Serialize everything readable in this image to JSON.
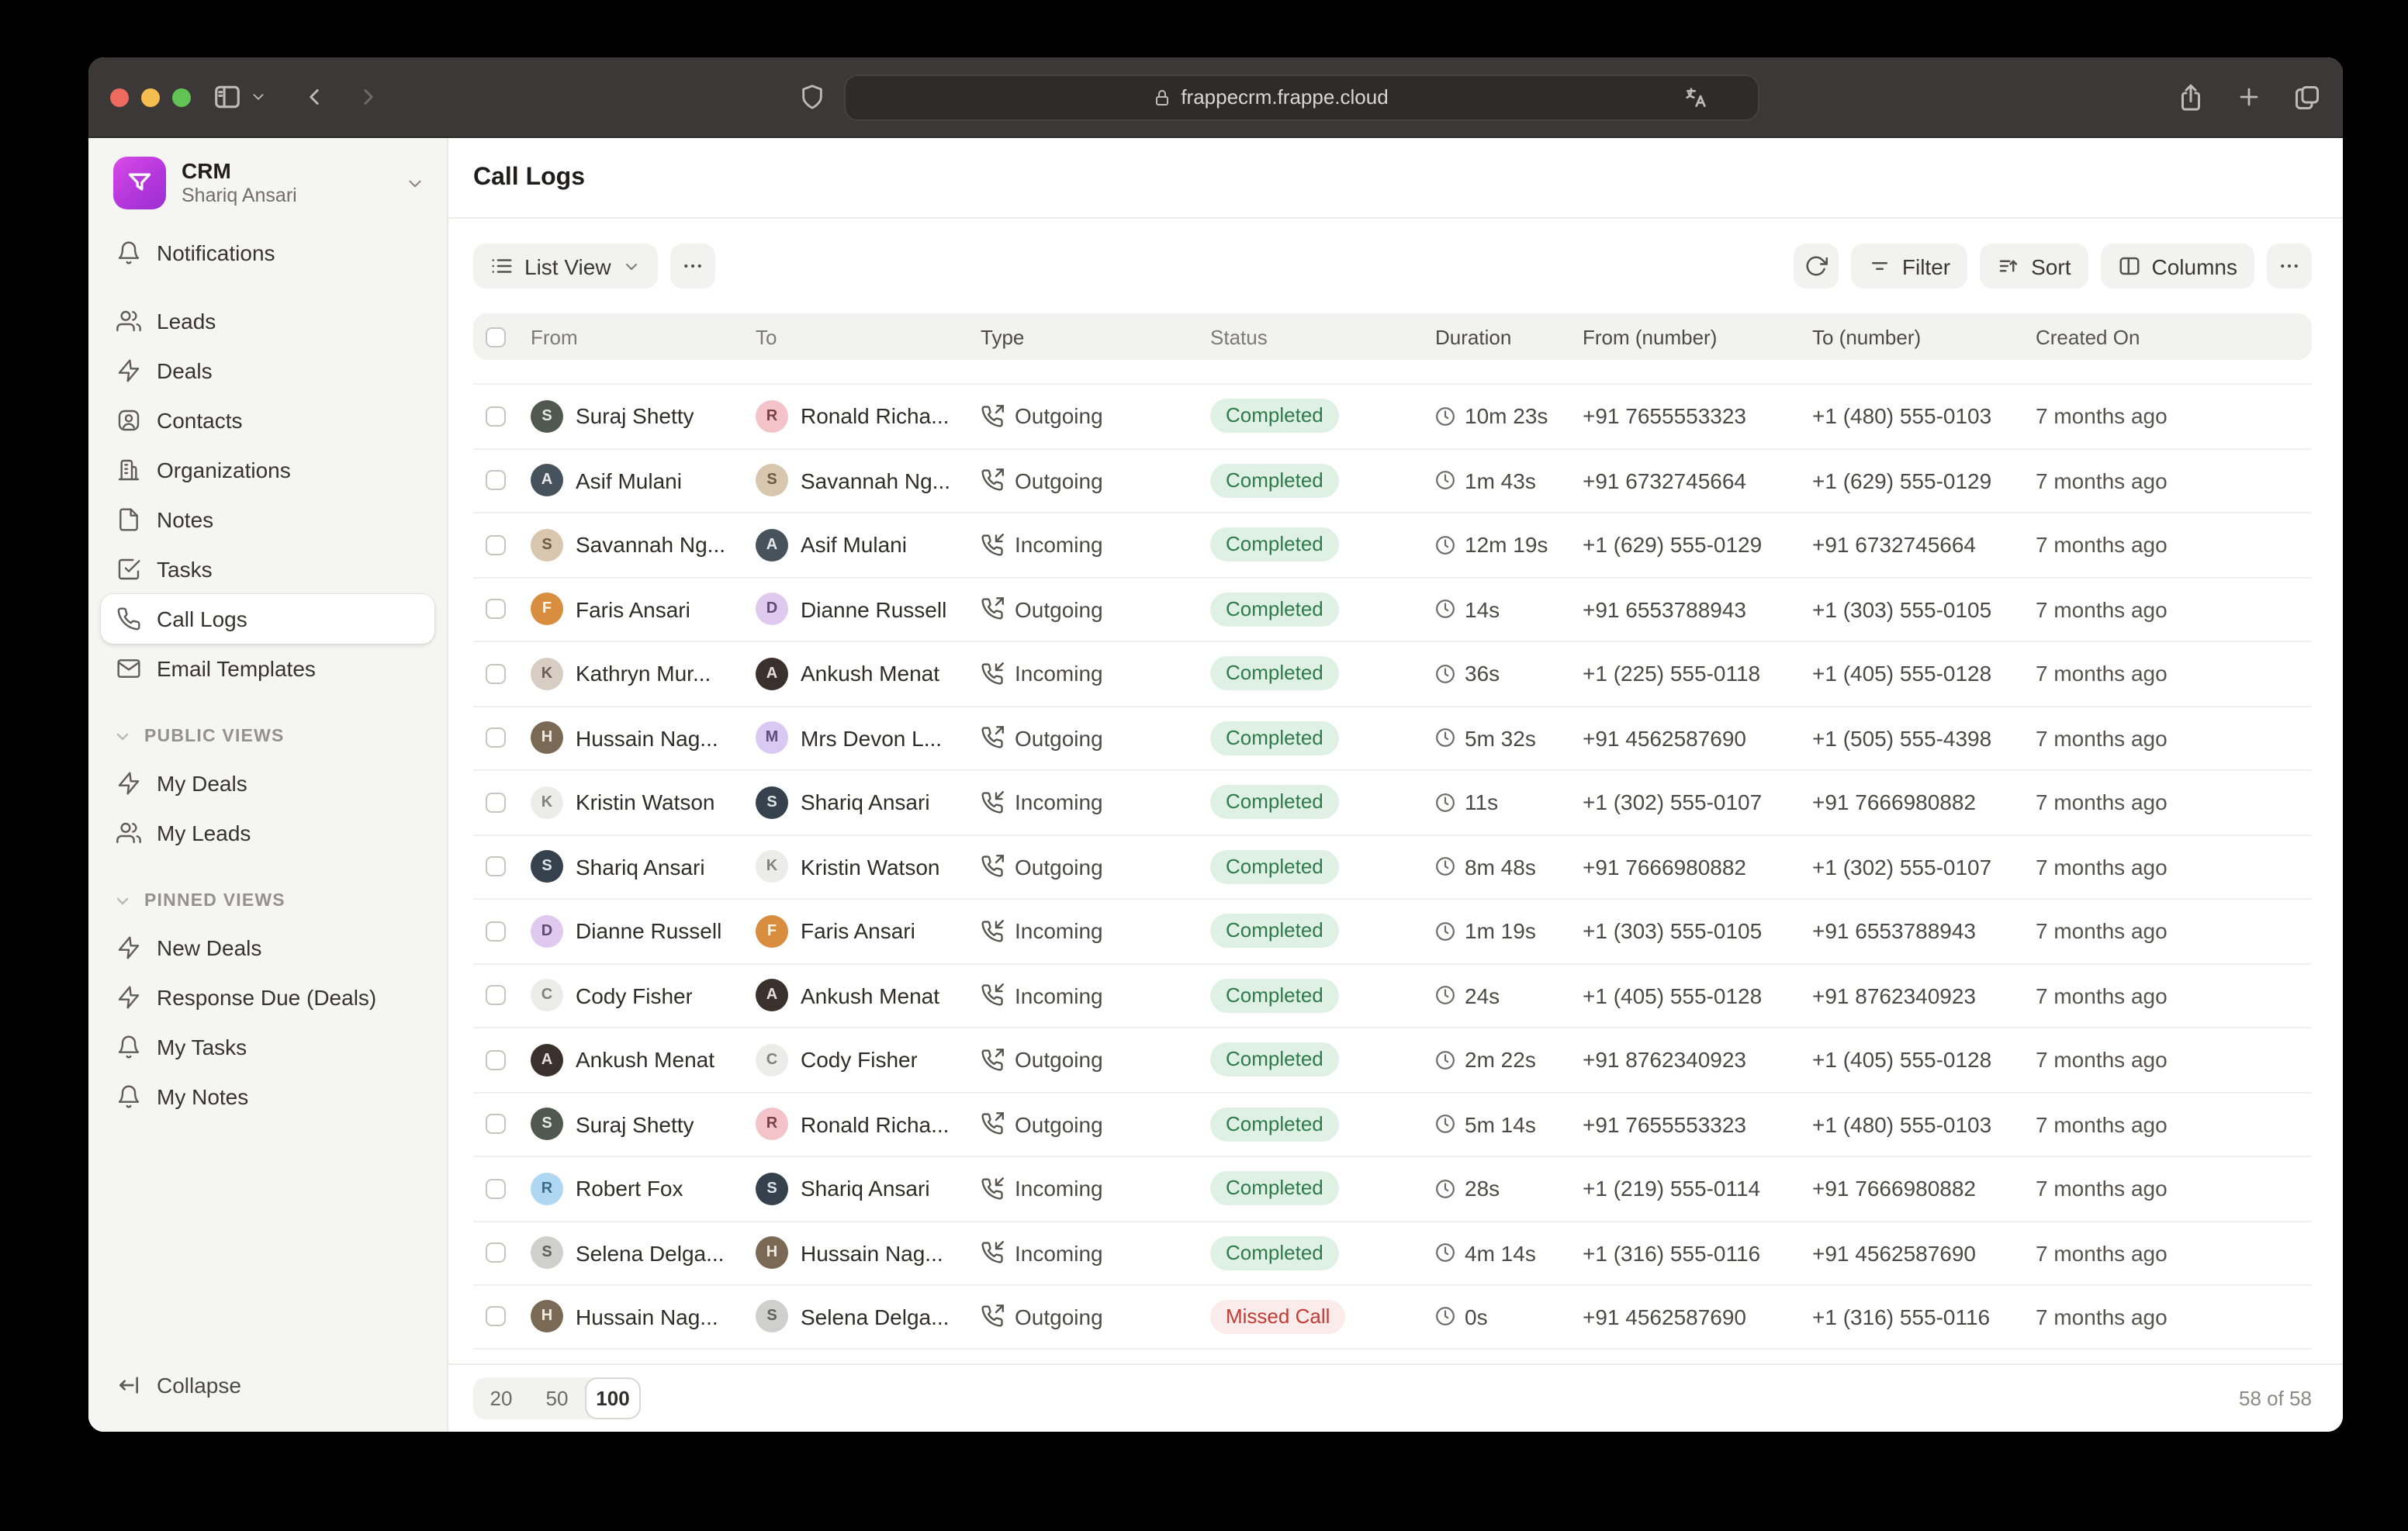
{
  "browser": {
    "url": "frappecrm.frappe.cloud",
    "traffic_lights": [
      "#EE6A5F",
      "#F5BD4F",
      "#61C454"
    ]
  },
  "sidebar": {
    "app": {
      "name": "CRM",
      "user": "Shariq Ansari"
    },
    "nav": [
      {
        "label": "Notifications",
        "icon": "bell"
      },
      {
        "label": "Leads",
        "icon": "users",
        "gap_before": true
      },
      {
        "label": "Deals",
        "icon": "zap"
      },
      {
        "label": "Contacts",
        "icon": "contact"
      },
      {
        "label": "Organizations",
        "icon": "building"
      },
      {
        "label": "Notes",
        "icon": "file"
      },
      {
        "label": "Tasks",
        "icon": "check-square"
      },
      {
        "label": "Call Logs",
        "icon": "phone",
        "active": true
      },
      {
        "label": "Email Templates",
        "icon": "mail"
      }
    ],
    "sections": [
      {
        "title": "PUBLIC VIEWS",
        "items": [
          {
            "label": "My Deals",
            "icon": "zap"
          },
          {
            "label": "My Leads",
            "icon": "users"
          }
        ]
      },
      {
        "title": "PINNED VIEWS",
        "items": [
          {
            "label": "New Deals",
            "icon": "zap"
          },
          {
            "label": "Response Due (Deals)",
            "icon": "zap"
          },
          {
            "label": "My Tasks",
            "icon": "bell"
          },
          {
            "label": "My Notes",
            "icon": "bell"
          }
        ]
      }
    ],
    "collapse_label": "Collapse"
  },
  "main": {
    "title": "Call Logs",
    "toolbar": {
      "view_label": "List View",
      "buttons": [
        {
          "label": "Filter",
          "icon": "filter"
        },
        {
          "label": "Sort",
          "icon": "sort"
        },
        {
          "label": "Columns",
          "icon": "columns"
        }
      ]
    },
    "table": {
      "columns": [
        "From",
        "To",
        "Type",
        "Status",
        "Duration",
        "From (number)",
        "To (number)",
        "Created On"
      ],
      "rows": [
        {
          "from": "Suraj Shetty",
          "to": "Ronald Richa...",
          "type": "outgoing",
          "status": "completed",
          "duration": "10m 23s",
          "from_number": "+91 7655553323",
          "to_number": "+1 (480) 555-0103",
          "created": "7 months ago"
        },
        {
          "from": "Asif Mulani",
          "to": "Savannah Ng...",
          "type": "outgoing",
          "status": "completed",
          "duration": "1m 43s",
          "from_number": "+91 6732745664",
          "to_number": "+1 (629) 555-0129",
          "created": "7 months ago"
        },
        {
          "from": "Savannah Ng...",
          "to": "Asif Mulani",
          "type": "incoming",
          "status": "completed",
          "duration": "12m 19s",
          "from_number": "+1 (629) 555-0129",
          "to_number": "+91 6732745664",
          "created": "7 months ago"
        },
        {
          "from": "Faris Ansari",
          "to": "Dianne Russell",
          "type": "outgoing",
          "status": "completed",
          "duration": "14s",
          "from_number": "+91 6553788943",
          "to_number": "+1 (303) 555-0105",
          "created": "7 months ago"
        },
        {
          "from": "Kathryn Mur...",
          "to": "Ankush Menat",
          "type": "incoming",
          "status": "completed",
          "duration": "36s",
          "from_number": "+1 (225) 555-0118",
          "to_number": "+1 (405) 555-0128",
          "created": "7 months ago"
        },
        {
          "from": "Hussain Nag...",
          "to": "Mrs Devon L...",
          "type": "outgoing",
          "status": "completed",
          "duration": "5m 32s",
          "from_number": "+91 4562587690",
          "to_number": "+1 (505) 555-4398",
          "created": "7 months ago"
        },
        {
          "from": "Kristin Watson",
          "to": "Shariq Ansari",
          "type": "incoming",
          "status": "completed",
          "duration": "11s",
          "from_number": "+1 (302) 555-0107",
          "to_number": "+91 7666980882",
          "created": "7 months ago"
        },
        {
          "from": "Shariq Ansari",
          "to": "Kristin Watson",
          "type": "outgoing",
          "status": "completed",
          "duration": "8m 48s",
          "from_number": "+91 7666980882",
          "to_number": "+1 (302) 555-0107",
          "created": "7 months ago"
        },
        {
          "from": "Dianne Russell",
          "to": "Faris Ansari",
          "type": "incoming",
          "status": "completed",
          "duration": "1m 19s",
          "from_number": "+1 (303) 555-0105",
          "to_number": "+91 6553788943",
          "created": "7 months ago"
        },
        {
          "from": "Cody Fisher",
          "to": "Ankush Menat",
          "type": "incoming",
          "status": "completed",
          "duration": "24s",
          "from_number": "+1 (405) 555-0128",
          "to_number": "+91 8762340923",
          "created": "7 months ago"
        },
        {
          "from": "Ankush Menat",
          "to": "Cody Fisher",
          "type": "outgoing",
          "status": "completed",
          "duration": "2m 22s",
          "from_number": "+91 8762340923",
          "to_number": "+1 (405) 555-0128",
          "created": "7 months ago"
        },
        {
          "from": "Suraj Shetty",
          "to": "Ronald Richa...",
          "type": "outgoing",
          "status": "completed",
          "duration": "5m 14s",
          "from_number": "+91 7655553323",
          "to_number": "+1 (480) 555-0103",
          "created": "7 months ago"
        },
        {
          "from": "Robert Fox",
          "to": "Shariq Ansari",
          "type": "incoming",
          "status": "completed",
          "duration": "28s",
          "from_number": "+1 (219) 555-0114",
          "to_number": "+91 7666980882",
          "created": "7 months ago"
        },
        {
          "from": "Selena Delga...",
          "to": "Hussain Nag...",
          "type": "incoming",
          "status": "completed",
          "duration": "4m 14s",
          "from_number": "+1 (316) 555-0116",
          "to_number": "+91 4562587690",
          "created": "7 months ago"
        },
        {
          "from": "Hussain Nag...",
          "to": "Selena Delga...",
          "type": "outgoing",
          "status": "missed",
          "duration": "0s",
          "from_number": "+91 4562587690",
          "to_number": "+1 (316) 555-0116",
          "created": "7 months ago"
        }
      ]
    },
    "types": {
      "outgoing": {
        "label": "Outgoing",
        "icon": "phone-out"
      },
      "incoming": {
        "label": "Incoming",
        "icon": "phone-in"
      }
    },
    "statuses": {
      "completed": {
        "label": "Completed",
        "fg": "#2E7B4A",
        "bg": "#DFF0E4"
      },
      "missed": {
        "label": "Missed Call",
        "fg": "#C23B34",
        "bg": "#FBEBEA"
      }
    },
    "footer": {
      "page_sizes": [
        "20",
        "50",
        "100"
      ],
      "selected": "100",
      "count": "58 of 58"
    }
  },
  "people": {
    "Suraj Shetty": {
      "bg": "#50594F",
      "fg": "#E8E8E4",
      "initial": "S"
    },
    "Ronald Richa...": {
      "bg": "#F3C3C9",
      "fg": "#7A4048",
      "initial": "R"
    },
    "Asif Mulani": {
      "bg": "#46525C",
      "fg": "#E6E8EA",
      "initial": "A"
    },
    "Savannah Ng...": {
      "bg": "#D9C6AE",
      "fg": "#6E5B43",
      "initial": "S"
    },
    "Faris Ansari": {
      "bg": "#D98E3F",
      "fg": "#FFF4E2",
      "initial": "F"
    },
    "Dianne Russell": {
      "bg": "#DFC9EF",
      "fg": "#5F4A75",
      "initial": "D"
    },
    "Kathryn Mur...": {
      "bg": "#D8CDC2",
      "fg": "#6B5F53",
      "initial": "K"
    },
    "Ankush Menat": {
      "bg": "#3B312C",
      "fg": "#E5DFDA",
      "initial": "A"
    },
    "Hussain Nag...": {
      "bg": "#7A6A55",
      "fg": "#F0EBE2",
      "initial": "H"
    },
    "Mrs Devon L...": {
      "bg": "#D9C9F2",
      "fg": "#5E4C7A",
      "initial": "M"
    },
    "Kristin Watson": {
      "bg": "#ECECEA",
      "fg": "#82817C",
      "initial": "K"
    },
    "Shariq Ansari": {
      "bg": "#35414C",
      "fg": "#DFE4E8",
      "initial": "S"
    },
    "Cody Fisher": {
      "bg": "#ECECEA",
      "fg": "#82817C",
      "initial": "C"
    },
    "Robert Fox": {
      "bg": "#AFD7F2",
      "fg": "#3F6C8C",
      "initial": "R"
    },
    "Selena Delga...": {
      "bg": "#CFCFCD",
      "fg": "#5F5F5D",
      "initial": "S"
    }
  },
  "colors": {
    "accent": "#B437DB",
    "titlebar": "#3B3837",
    "urlbar": "#2E2C2B",
    "sidebar_bg": "#F5F5F4",
    "row_divider": "#EFEFED"
  }
}
